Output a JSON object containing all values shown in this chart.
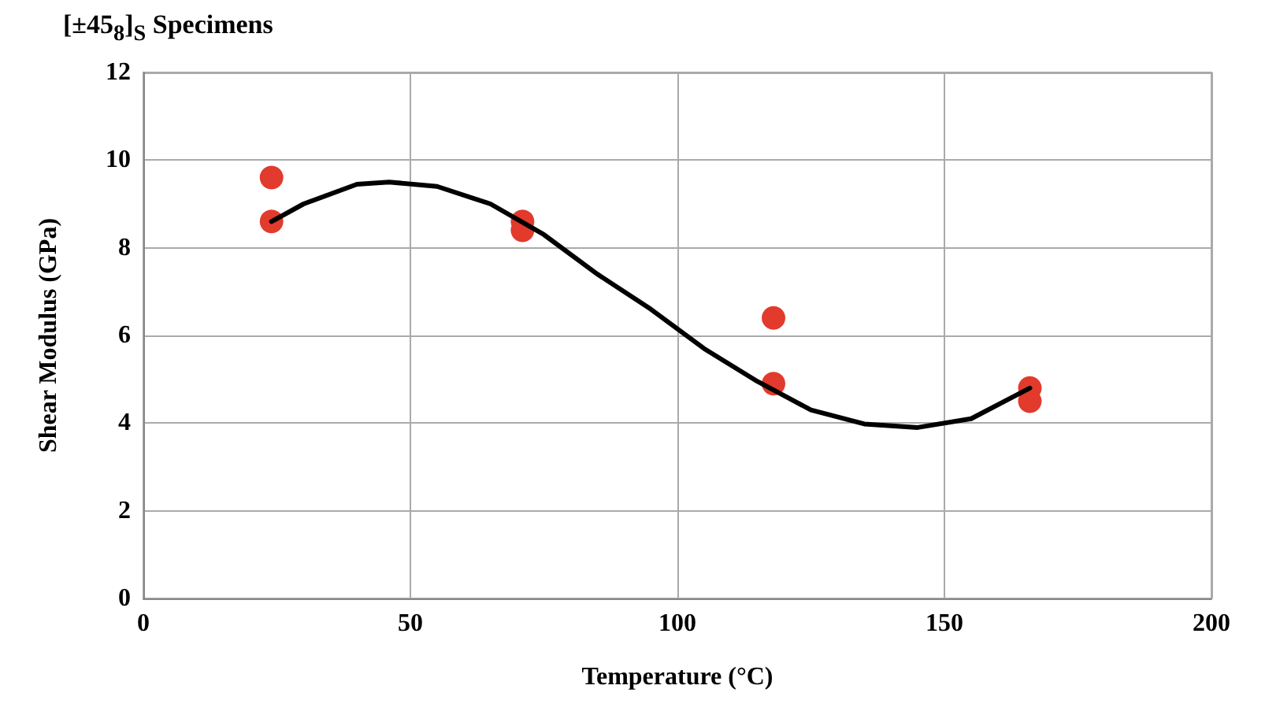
{
  "chart_data": {
    "type": "scatter",
    "title": "[±45$_{8}$]$_{S}$ Specimens",
    "xlabel": "Temperature (°C)",
    "ylabel": "Shear Modulus (GPa)",
    "xlim": [
      0,
      200
    ],
    "xticks": [
      0,
      50,
      100,
      150,
      200
    ],
    "ylim": [
      0,
      12
    ],
    "yticks": [
      0,
      2,
      4,
      6,
      8,
      10,
      12
    ],
    "grid": true,
    "marker": "circle",
    "series": [
      {
        "color": "#e23a2c",
        "x": [
          24,
          24,
          71,
          71,
          118,
          118,
          166,
          166
        ],
        "values": [
          9.6,
          8.6,
          8.6,
          8.4,
          6.4,
          4.9,
          4.8,
          4.5
        ]
      },
      {
        "type": "line",
        "color": "#000000",
        "marker": "none",
        "x": [
          24,
          30,
          40,
          46,
          55,
          65,
          75,
          85,
          95,
          105,
          115,
          125,
          135,
          145,
          155,
          166
        ],
        "values": [
          8.6,
          9.0,
          9.45,
          9.5,
          9.4,
          9.0,
          8.3,
          7.4,
          6.6,
          5.7,
          4.95,
          4.3,
          3.98,
          3.9,
          4.1,
          4.8
        ]
      }
    ]
  }
}
